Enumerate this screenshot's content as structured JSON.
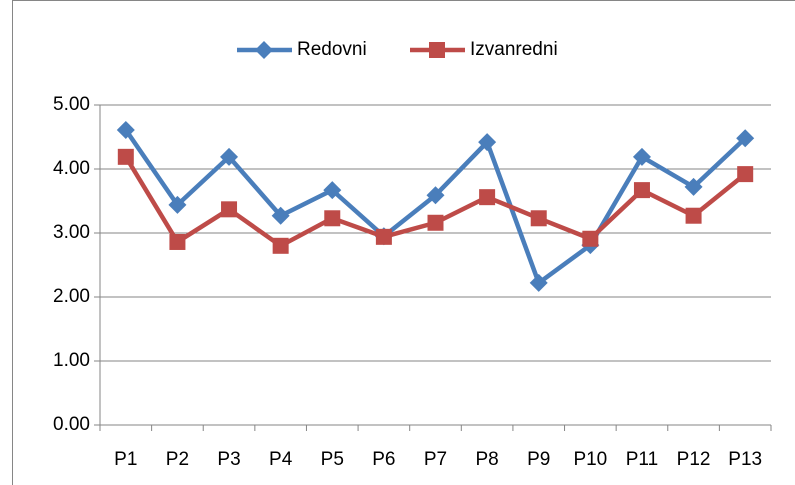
{
  "chart_data": {
    "type": "line",
    "categories": [
      "P1",
      "P2",
      "P3",
      "P4",
      "P5",
      "P6",
      "P7",
      "P8",
      "P9",
      "P10",
      "P11",
      "P12",
      "P13"
    ],
    "series": [
      {
        "name": "Redovni",
        "color": "#4a7ebb",
        "marker": "diamond",
        "values": [
          4.61,
          3.44,
          4.19,
          3.27,
          3.67,
          2.95,
          3.59,
          4.42,
          2.22,
          2.81,
          4.19,
          3.72,
          4.48
        ]
      },
      {
        "name": "Izvanredni",
        "color": "#be4b48",
        "marker": "square",
        "values": [
          4.19,
          2.86,
          3.37,
          2.8,
          3.23,
          2.94,
          3.16,
          3.56,
          3.23,
          2.91,
          3.67,
          3.27,
          3.92
        ]
      }
    ],
    "ylim": [
      0,
      5
    ],
    "yticks": [
      {
        "value": 0,
        "label": "0.00"
      },
      {
        "value": 1,
        "label": "1.00"
      },
      {
        "value": 2,
        "label": "2.00"
      },
      {
        "value": 3,
        "label": "3.00"
      },
      {
        "value": 4,
        "label": "4.00"
      },
      {
        "value": 5,
        "label": "5.00"
      }
    ],
    "grid": true,
    "legend": "top"
  }
}
